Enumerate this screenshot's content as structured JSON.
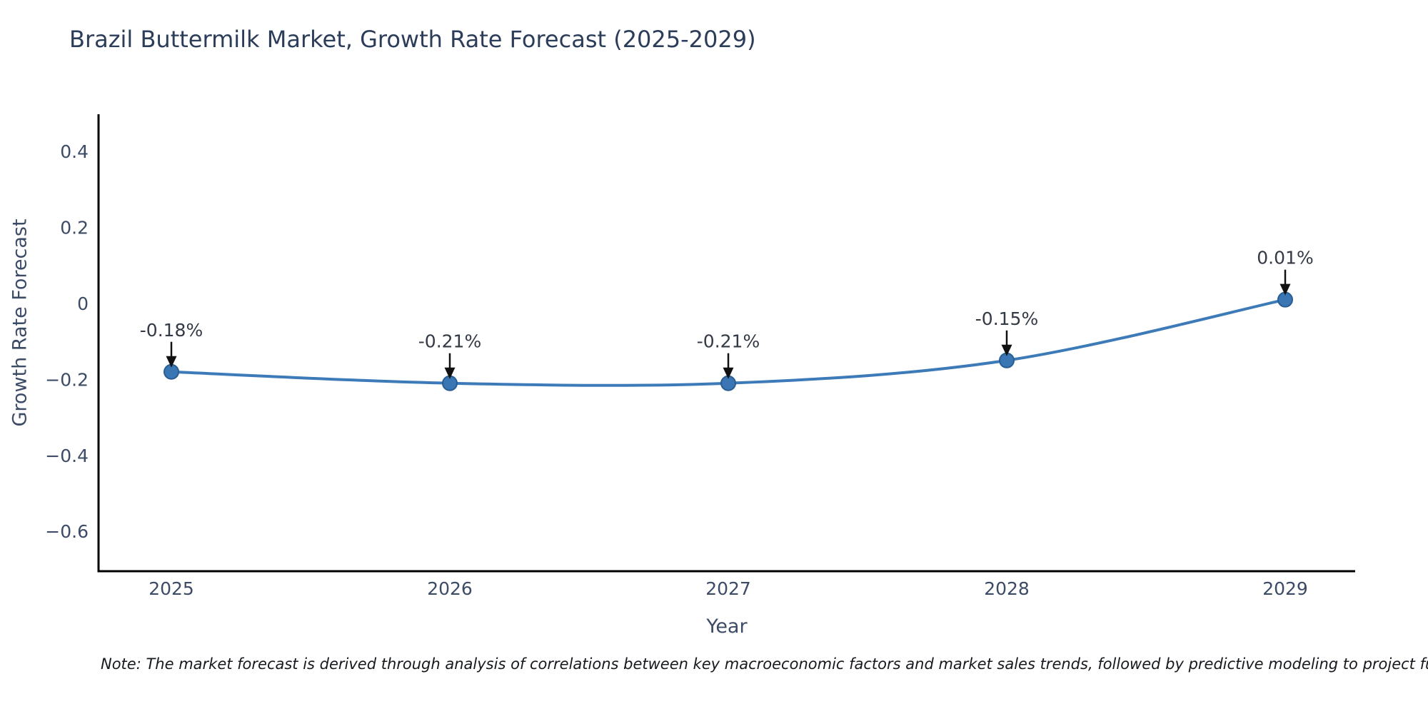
{
  "header": {
    "title": "Brazil Buttermilk Market, Growth Rate Forecast (2025-2029)"
  },
  "chart_data": {
    "type": "line",
    "title": "Brazil Buttermilk Market, Growth Rate Forecast (2025-2029)",
    "categories": [
      "2025",
      "2026",
      "2027",
      "2028",
      "2029"
    ],
    "x": [
      2025,
      2026,
      2027,
      2028,
      2029
    ],
    "series": [
      {
        "name": "Growth Rate Forecast",
        "values": [
          -0.18,
          -0.21,
          -0.21,
          -0.15,
          0.01
        ]
      }
    ],
    "point_labels": [
      "-0.18%",
      "-0.21%",
      "-0.21%",
      "-0.15%",
      "0.01%"
    ],
    "xlabel": "Year",
    "ylabel": "Growth Rate Forecast",
    "yticks": [
      0.4,
      0.2,
      0,
      -0.2,
      -0.4,
      -0.6
    ],
    "ytick_labels": [
      "0.4",
      "0.2",
      "0",
      "−0.2",
      "−0.4",
      "−0.6"
    ],
    "ylim": [
      -0.705,
      0.5
    ],
    "grid": false,
    "legend": "none",
    "smooth_line": true,
    "colors": {
      "line": "#3d7ab8",
      "marker_fill": "#3a76b4",
      "marker_edge": "#295e94",
      "axis": "#000000",
      "tick_label": "#3c4b66",
      "annotation_text": "#333a45",
      "annotation_arrow": "#111111",
      "title": "#2c3d5a"
    }
  },
  "footer": {
    "note": "Note: The market forecast is derived through analysis of correlations between key macroeconomic factors and market sales trends, followed by predictive modeling to project future sa"
  }
}
